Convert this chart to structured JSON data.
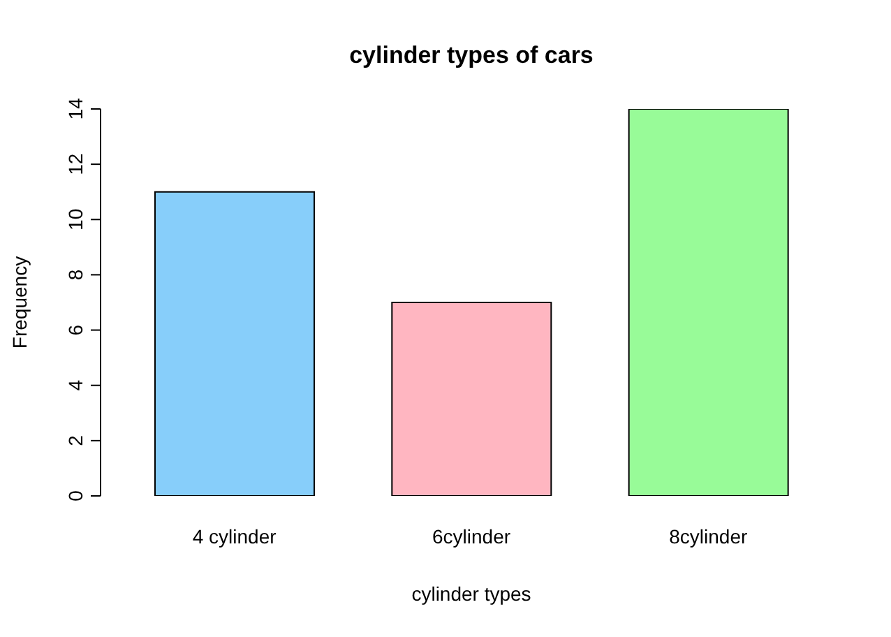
{
  "chart_data": {
    "type": "bar",
    "title": "cylinder types of cars",
    "xlabel": "cylinder types",
    "ylabel": "Frequency",
    "categories": [
      "4 cylinder",
      "6cylinder",
      "8cylinder"
    ],
    "values": [
      11,
      7,
      14
    ],
    "colors": [
      "#87cefa",
      "#ffb6c1",
      "#98fb98"
    ],
    "ylim": [
      0,
      14
    ],
    "yticks": [
      0,
      2,
      4,
      6,
      8,
      10,
      12,
      14
    ],
    "grid": false,
    "legend": false
  }
}
